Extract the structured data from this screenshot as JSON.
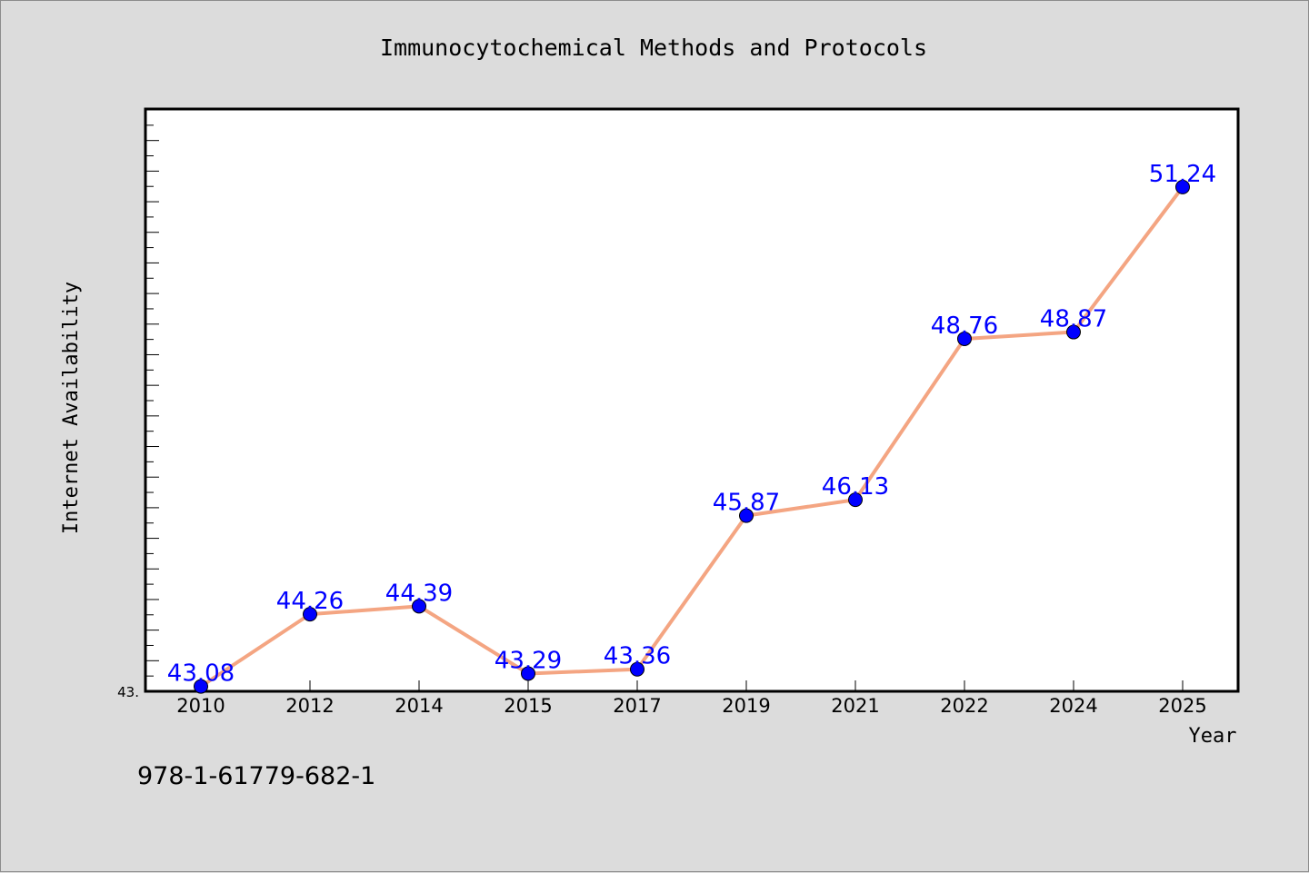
{
  "chart_data": {
    "type": "line",
    "title": "Immunocytochemical Methods and Protocols",
    "xlabel": "Year",
    "ylabel": "Internet Availability",
    "footer_text": "978-1-61779-682-1",
    "categories": [
      "2010",
      "2012",
      "2014",
      "2015",
      "2017",
      "2019",
      "2021",
      "2022",
      "2024",
      "2025"
    ],
    "series": [
      {
        "values": [
          43.08,
          44.26,
          44.39,
          43.29,
          43.36,
          45.87,
          46.13,
          48.76,
          48.87,
          51.24
        ],
        "data_labels": [
          "43.08",
          "44.26",
          "44.39",
          "43.29",
          "43.36",
          "45.87",
          "46.13",
          "48.76",
          "48.87",
          "51.24"
        ]
      }
    ],
    "ylim": [
      43,
      52.5
    ],
    "y_tick_label": "43.",
    "grid": false,
    "colors": {
      "line": "#f4a582",
      "marker": "#0000ff",
      "data_label": "#0000ff",
      "background": "#dcdcdc",
      "plot_background": "#ffffff"
    }
  }
}
